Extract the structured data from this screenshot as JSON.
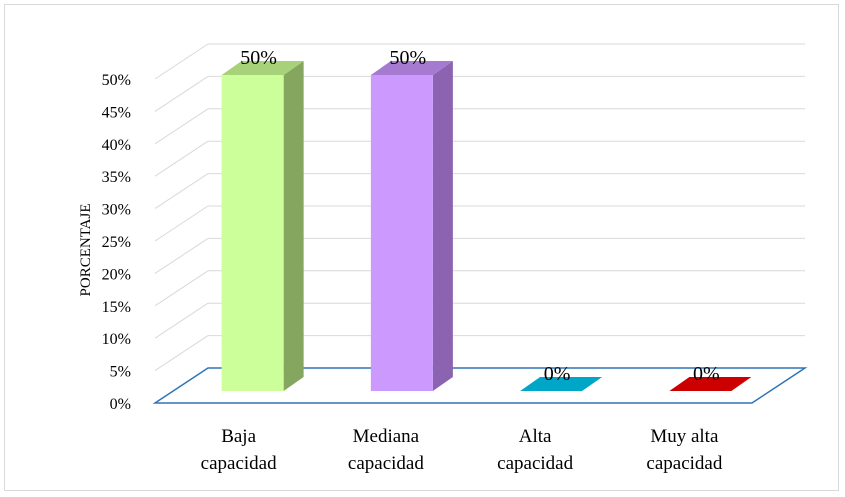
{
  "chart_data": {
    "type": "bar",
    "style": "3d-column",
    "ylabel": "PORCENTAJE",
    "xlabel": "",
    "ylim": [
      0,
      50
    ],
    "y_tick_step": 5,
    "y_ticks": [
      "0%",
      "5%",
      "10%",
      "15%",
      "20%",
      "25%",
      "30%",
      "35%",
      "40%",
      "45%",
      "50%"
    ],
    "grid": true,
    "legend": "none",
    "categories": [
      [
        "Baja",
        "capacidad"
      ],
      [
        "Mediana",
        "capacidad"
      ],
      [
        "Alta",
        "capacidad"
      ],
      [
        "Muy alta",
        "capacidad"
      ]
    ],
    "values": [
      50,
      50,
      0,
      0
    ],
    "data_labels": [
      "50%",
      "50%",
      "0%",
      "0%"
    ],
    "colors": {
      "bars": [
        {
          "front": "#ccff99",
          "side": "#84a65f",
          "top": "#a8d27a"
        },
        {
          "front": "#cc99ff",
          "side": "#8b63b0",
          "top": "#a57ad0"
        },
        {
          "front": "#0099bb",
          "side": "#00718b",
          "top": "#00a6c8"
        },
        {
          "front": "#cc0000",
          "side": "#8f0000",
          "top": "#cc0000"
        }
      ],
      "grid": "#d9d9d9",
      "floor": "#2e75b6"
    }
  }
}
